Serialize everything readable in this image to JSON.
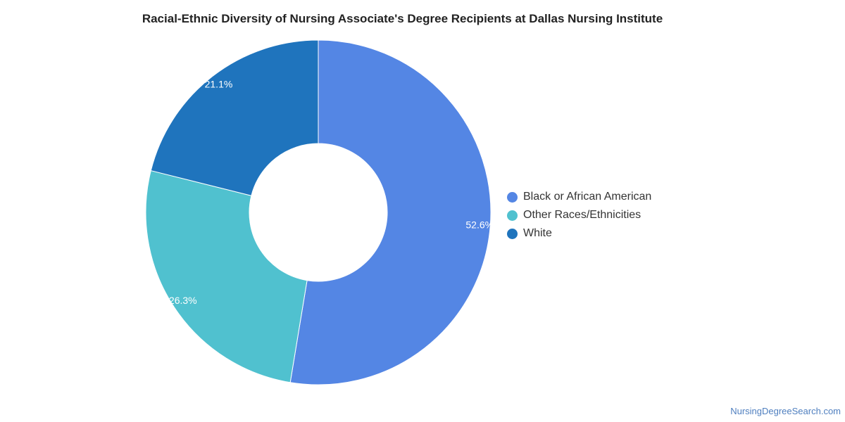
{
  "chart_data": {
    "type": "pie",
    "title": "Racial-Ethnic Diversity of Nursing Associate's Degree Recipients at Dallas Nursing Institute",
    "donut": true,
    "legend_position": "right",
    "slices": [
      {
        "label": "Black or African American",
        "value": 52.6,
        "display": "52.6%",
        "color": "#5486e4"
      },
      {
        "label": "Other Races/Ethnicities",
        "value": 26.3,
        "display": "26.3%",
        "color": "#50c1cf"
      },
      {
        "label": "White",
        "value": 21.1,
        "display": "21.1%",
        "color": "#1f74bd"
      }
    ]
  },
  "watermark": "NursingDegreeSearch.com"
}
